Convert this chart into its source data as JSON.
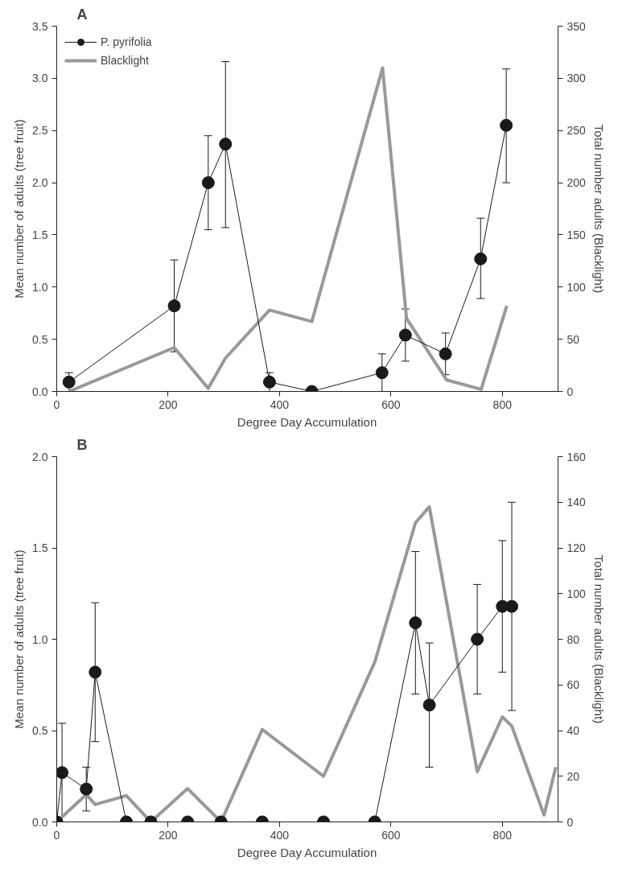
{
  "chart_data": [
    {
      "type": "line",
      "title": "A",
      "xlabel": "Degree Day Accumulation",
      "ylabel": "Mean number of adults (tree fruit)",
      "y2label": "Total number adults (Blacklight)",
      "xlim": [
        0,
        900
      ],
      "xticks": [
        0,
        200,
        400,
        600,
        800
      ],
      "ylim": [
        0,
        3.5
      ],
      "yticks": [
        {
          "value": 0,
          "label": "0.0"
        },
        {
          "value": 0.5,
          "label": "0.5"
        },
        {
          "value": 1,
          "label": "1.0"
        },
        {
          "value": 1.5,
          "label": "1.5"
        },
        {
          "value": 2,
          "label": "2.0"
        },
        {
          "value": 2.5,
          "label": "2.5"
        },
        {
          "value": 3,
          "label": "3.0"
        },
        {
          "value": 3.5,
          "label": "3.5"
        }
      ],
      "y2lim": [
        0,
        350
      ],
      "y2ticks": [
        0,
        50,
        100,
        150,
        200,
        250,
        300,
        350
      ],
      "grid": false,
      "legend": "top left",
      "series": [
        {
          "name": "P. pyrifolia",
          "color": "#1a1a1a",
          "marker": "circle",
          "line_style": "solid",
          "x": [
            22,
            211,
            272,
            303,
            382,
            458,
            584,
            626,
            698,
            761,
            807
          ],
          "values": [
            0.09,
            0.82,
            2.0,
            2.37,
            0.09,
            0.0,
            0.18,
            0.54,
            0.36,
            1.27,
            2.55
          ],
          "errors": [
            [
              0.0,
              0.18
            ],
            [
              0.38,
              1.26
            ],
            [
              1.55,
              2.45
            ],
            [
              1.57,
              3.16
            ],
            [
              0.0,
              0.18
            ],
            null,
            [
              0.0,
              0.36
            ],
            [
              0.29,
              0.79
            ],
            [
              0.16,
              0.56
            ],
            [
              0.89,
              1.66
            ],
            [
              2.0,
              3.09
            ]
          ]
        },
        {
          "name": "Blacklight",
          "color": "#999999",
          "marker": "none",
          "line_style": "solid",
          "axis": "y2",
          "x": [
            22,
            211,
            272,
            303,
            382,
            458,
            585,
            628,
            700,
            762,
            808
          ],
          "values": [
            0,
            42,
            3,
            32,
            78,
            67,
            310,
            70,
            11,
            2,
            82
          ]
        }
      ]
    },
    {
      "type": "line",
      "title": "B",
      "xlabel": "Degree Day Accumulation",
      "ylabel": "Mean number of adults (tree fruit)",
      "y2label": "Total number adults (Blacklight)",
      "xlim": [
        0,
        900
      ],
      "xticks": [
        0,
        200,
        400,
        600,
        800
      ],
      "ylim": [
        0,
        2.0
      ],
      "yticks": [
        {
          "value": 0,
          "label": "0.0"
        },
        {
          "value": 0.5,
          "label": "0.5"
        },
        {
          "value": 1,
          "label": "1.0"
        },
        {
          "value": 1.5,
          "label": "1.5"
        },
        {
          "value": 2,
          "label": "2.0"
        }
      ],
      "y2lim": [
        0,
        160
      ],
      "y2ticks": [
        0,
        20,
        40,
        60,
        80,
        100,
        120,
        140,
        160
      ],
      "grid": false,
      "series": [
        {
          "color": "#1a1a1a",
          "marker": "circle",
          "line_style": "solid",
          "x": [
            0,
            9.5,
            53,
            69,
            125,
            169,
            235,
            295,
            369,
            479,
            571,
            644,
            669,
            755,
            800,
            817
          ],
          "values": [
            0,
            0.27,
            0.18,
            0.82,
            0,
            0,
            0,
            0,
            0,
            0,
            0,
            1.09,
            0.64,
            1.0,
            1.18,
            1.18
          ],
          "errors": [
            null,
            [
              0.0,
              0.54
            ],
            [
              0.06,
              0.3
            ],
            [
              0.44,
              1.2
            ],
            null,
            null,
            null,
            null,
            null,
            null,
            null,
            [
              0.7,
              1.48
            ],
            [
              0.3,
              0.98
            ],
            [
              0.7,
              1.3
            ],
            [
              0.82,
              1.54
            ],
            [
              0.61,
              1.75
            ]
          ]
        },
        {
          "color": "#999999",
          "marker": "none",
          "line_style": "solid",
          "axis": "y2",
          "x": [
            0,
            53,
            69,
            125,
            169,
            235,
            295,
            369,
            479,
            571,
            644,
            669,
            755,
            800,
            817,
            875,
            896
          ],
          "values": [
            0,
            12,
            7.6,
            11.5,
            0,
            14.6,
            0,
            40.5,
            20,
            70,
            131,
            138,
            22,
            46,
            42,
            3,
            24
          ]
        }
      ]
    }
  ]
}
